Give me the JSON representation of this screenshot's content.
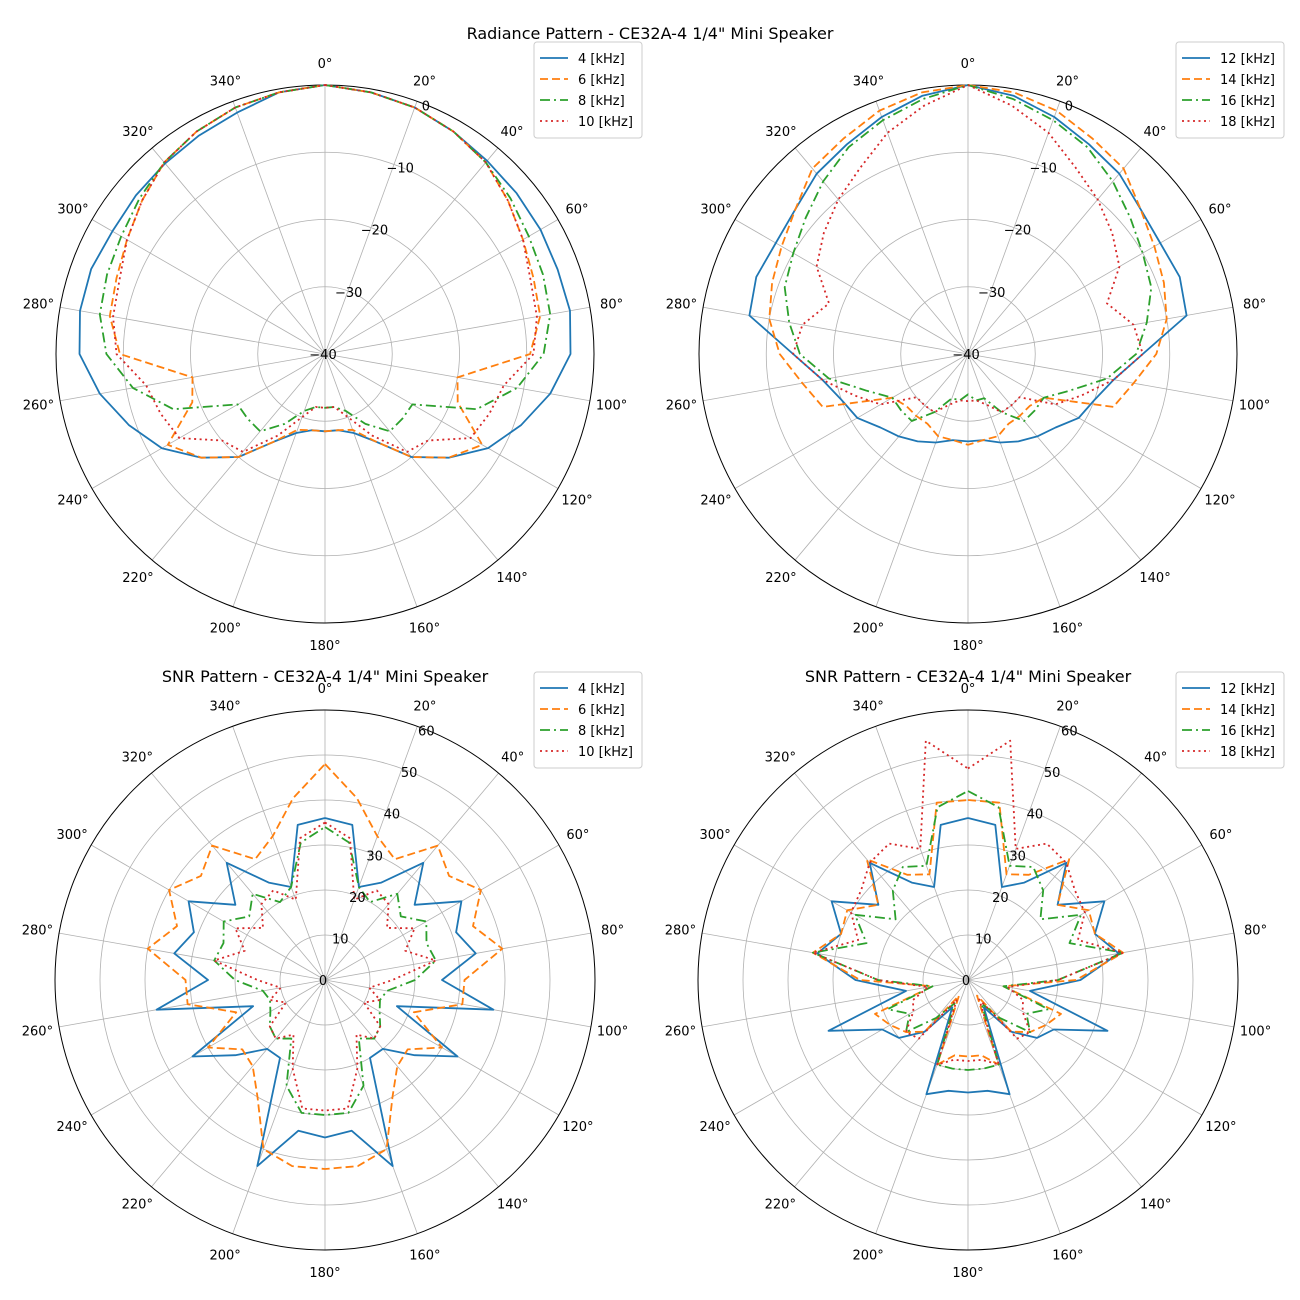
{
  "figure": {
    "titles": [
      "Radiance Pattern - CE32A-4 1/4\" Mini Speaker",
      "SNR Pattern - CE32A-4 1/4\" Mini Speaker"
    ]
  },
  "chart_data": [
    {
      "type": "line",
      "subtype": "polar",
      "panel": "top-left",
      "title": "Radiance Pattern - CE32A-4 1/4\" Mini Speaker",
      "theta_direction": "clockwise",
      "theta_zero": "top",
      "theta_tick_labels": [
        "0°",
        "20°",
        "40°",
        "60°",
        "80°",
        "100°",
        "120°",
        "140°",
        "160°",
        "180°",
        "200°",
        "220°",
        "240°",
        "260°",
        "280°",
        "300°",
        "320°",
        "340°"
      ],
      "r_range": [
        -40,
        0
      ],
      "r_ticks": [
        0,
        -10,
        -20,
        -30,
        -40
      ],
      "r_tick_labels": [
        "0",
        "−10",
        "−20",
        "−30",
        "−40"
      ],
      "grid": true,
      "legend_position": "top-right",
      "angles": [
        0,
        10,
        20,
        30,
        40,
        50,
        60,
        70,
        80,
        90,
        100,
        110,
        120,
        130,
        140,
        150,
        160,
        170,
        180,
        190,
        200,
        210,
        220,
        230,
        240,
        250,
        260,
        270,
        280,
        290,
        300,
        310,
        320,
        330,
        340,
        350
      ],
      "series": [
        {
          "name": "4 [kHz]",
          "style": "solid",
          "color": "#1f77b4",
          "values": [
            0,
            -0.5,
            -1,
            -1.8,
            -2.5,
            -2.8,
            -3,
            -3.2,
            -3,
            -3.5,
            -6,
            -9,
            -12,
            -16,
            -20,
            -25,
            -27.5,
            -28.5,
            -28.5,
            -28.5,
            -27.5,
            -25,
            -20,
            -16,
            -12,
            -9,
            -6,
            -3.5,
            -3,
            -3,
            -3.5,
            -3.3,
            -3,
            -2.5,
            -1.8,
            -0.5
          ]
        },
        {
          "name": "6 [kHz]",
          "style": "solid",
          "color": "#ff7f0e",
          "values": [
            0,
            -0.5,
            -1,
            -1.8,
            -2.8,
            -4.5,
            -6,
            -7,
            -7.5,
            -9.5,
            -20,
            -19,
            -13,
            -16,
            -20,
            -25,
            -28,
            -28.5,
            -28.5,
            -28.5,
            -28,
            -25,
            -20,
            -16,
            -13,
            -19,
            -20,
            -9.5,
            -7.5,
            -7,
            -6,
            -4.5,
            -2.8,
            -1.8,
            -1,
            -0.5
          ]
        },
        {
          "name": "8 [kHz]",
          "style": "solid",
          "color": "#2ca02c",
          "values": [
            0,
            -0.5,
            -1,
            -1.8,
            -2.8,
            -4,
            -5,
            -5.5,
            -6,
            -7.5,
            -11,
            -16,
            -25,
            -25,
            -25,
            -28,
            -31,
            -32,
            -32,
            -32,
            -31,
            -28,
            -25,
            -25,
            -25,
            -16,
            -11,
            -7.5,
            -6,
            -5.5,
            -5,
            -4,
            -2.8,
            -1.8,
            -1,
            -0.5
          ]
        },
        {
          "name": "10 [kHz]",
          "style": "solid",
          "color": "#d62728",
          "values": [
            0,
            -0.5,
            -1,
            -1.8,
            -2.8,
            -4.5,
            -6,
            -7.5,
            -8,
            -9,
            -13,
            -14,
            -15,
            -20,
            -21,
            -26,
            -30,
            -32,
            -32,
            -32,
            -30,
            -26,
            -21,
            -20,
            -15,
            -14,
            -13,
            -9,
            -8,
            -7.5,
            -6,
            -4.5,
            -2.8,
            -1.8,
            -1,
            -0.5
          ]
        }
      ]
    },
    {
      "type": "line",
      "subtype": "polar",
      "panel": "top-right",
      "title": "",
      "theta_direction": "clockwise",
      "theta_zero": "top",
      "theta_tick_labels": [
        "0°",
        "20°",
        "40°",
        "60°",
        "80°",
        "100°",
        "120°",
        "140°",
        "160°",
        "180°",
        "200°",
        "220°",
        "240°",
        "260°",
        "280°",
        "300°",
        "320°",
        "340°"
      ],
      "r_range": [
        -40,
        0
      ],
      "r_ticks": [
        0,
        -10,
        -20,
        -30,
        -40
      ],
      "r_tick_labels": [
        "0",
        "−10",
        "−20",
        "−30",
        "−40"
      ],
      "grid": true,
      "legend_position": "top-right",
      "angles": [
        0,
        10,
        20,
        30,
        40,
        50,
        60,
        70,
        80,
        90,
        100,
        110,
        120,
        130,
        140,
        150,
        160,
        170,
        180,
        190,
        200,
        210,
        220,
        230,
        240,
        250,
        260,
        270,
        280,
        290,
        300,
        310,
        320,
        330,
        340,
        350
      ],
      "series": [
        {
          "name": "12 [kHz]",
          "style": "solid",
          "color": "#1f77b4",
          "values": [
            0,
            -1,
            -2.5,
            -4,
            -5,
            -6.5,
            -7,
            -6.5,
            -7,
            -14,
            -18,
            -20,
            -21,
            -23,
            -24,
            -25,
            -26,
            -27,
            -27,
            -27,
            -26,
            -25,
            -24,
            -23,
            -21,
            -20,
            -18,
            -14,
            -7,
            -6.5,
            -7,
            -6.5,
            -5,
            -4,
            -2.5,
            -1
          ]
        },
        {
          "name": "14 [kHz]",
          "style": "solid",
          "color": "#ff7f0e",
          "values": [
            0,
            -0.5,
            -1.5,
            -3,
            -4,
            -6.5,
            -8,
            -9,
            -10,
            -12,
            -15,
            -17,
            -27,
            -28,
            -28,
            -28,
            -27,
            -27,
            -26.5,
            -27,
            -27,
            -28,
            -28,
            -28,
            -27,
            -17,
            -15,
            -12,
            -10,
            -9,
            -8,
            -6.5,
            -4,
            -3,
            -1.5,
            -0.5
          ]
        },
        {
          "name": "16 [kHz]",
          "style": "solid",
          "color": "#2ca02c",
          "values": [
            0,
            -1.5,
            -3,
            -4.5,
            -6.5,
            -8.5,
            -10,
            -11,
            -13,
            -15,
            -19,
            -24,
            -27,
            -27,
            -27,
            -30,
            -33,
            -33,
            -34,
            -33,
            -33,
            -30,
            -27,
            -27,
            -27,
            -24,
            -19,
            -15,
            -13,
            -11,
            -10,
            -8.5,
            -6.5,
            -4.5,
            -3,
            -1.5
          ]
        },
        {
          "name": "18 [kHz]",
          "style": "solid",
          "color": "#d62728",
          "values": [
            0,
            -2.5,
            -5,
            -8,
            -10,
            -12,
            -14,
            -18,
            -15,
            -14,
            -18,
            -22,
            -25,
            -30,
            -30,
            -30,
            -32,
            -33,
            -33,
            -33,
            -32,
            -30,
            -30,
            -30,
            -25,
            -22,
            -18,
            -14,
            -15,
            -18,
            -14,
            -12,
            -10,
            -8,
            -5,
            -2.5
          ]
        }
      ]
    },
    {
      "type": "line",
      "subtype": "polar",
      "panel": "bottom-left",
      "title": "SNR Pattern - CE32A-4 1/4\" Mini Speaker",
      "theta_direction": "clockwise",
      "theta_zero": "top",
      "theta_tick_labels": [
        "0°",
        "20°",
        "40°",
        "60°",
        "80°",
        "100°",
        "120°",
        "140°",
        "160°",
        "180°",
        "200°",
        "220°",
        "240°",
        "260°",
        "280°",
        "300°",
        "320°",
        "340°"
      ],
      "r_range": [
        0,
        60
      ],
      "r_ticks": [
        0,
        10,
        20,
        30,
        40,
        50,
        60
      ],
      "r_tick_labels": [
        "0",
        "10",
        "20",
        "30",
        "40",
        "50",
        "60"
      ],
      "grid": true,
      "legend_position": "top-right",
      "angles": [
        0,
        10,
        20,
        30,
        40,
        50,
        60,
        70,
        80,
        90,
        100,
        110,
        120,
        130,
        140,
        150,
        160,
        170,
        180,
        190,
        200,
        210,
        220,
        230,
        240,
        250,
        260,
        270,
        280,
        290,
        300,
        310,
        320,
        330,
        340,
        350
      ],
      "series": [
        {
          "name": "4 [kHz]",
          "style": "solid",
          "color": "#1f77b4",
          "values": [
            36,
            35,
            22,
            25,
            34,
            26,
            35,
            31,
            34,
            26,
            38,
            17,
            34,
            26,
            20,
            20,
            44,
            34,
            35,
            34,
            44,
            20,
            20,
            26,
            34,
            17,
            38,
            26,
            34,
            31,
            35,
            26,
            34,
            25,
            22,
            35
          ]
        },
        {
          "name": "6 [kHz]",
          "style": "solid",
          "color": "#ff7f0e",
          "values": [
            48,
            41,
            34,
            31,
            39,
            36,
            40,
            35,
            40,
            31,
            31,
            21,
            30,
            24,
            25,
            30,
            40,
            42,
            42,
            42,
            40,
            30,
            25,
            24,
            30,
            21,
            31,
            31,
            40,
            35,
            40,
            36,
            39,
            31,
            34,
            41
          ]
        },
        {
          "name": "8 [kHz]",
          "style": "solid",
          "color": "#2ca02c",
          "values": [
            34,
            31,
            22,
            20,
            25,
            22,
            26,
            24,
            25,
            20,
            14,
            13,
            14,
            16,
            17,
            15,
            25,
            30,
            30,
            30,
            25,
            15,
            17,
            16,
            14,
            13,
            14,
            20,
            25,
            24,
            26,
            22,
            25,
            20,
            22,
            31
          ]
        },
        {
          "name": "10 [kHz]",
          "style": "solid",
          "color": "#d62728",
          "values": [
            35,
            32,
            19,
            23,
            22,
            18,
            23,
            19,
            25,
            15,
            10,
            13,
            10,
            16,
            17,
            14,
            21,
            29,
            29,
            29,
            21,
            14,
            17,
            16,
            10,
            13,
            10,
            15,
            25,
            19,
            23,
            18,
            22,
            23,
            19,
            32
          ]
        }
      ]
    },
    {
      "type": "line",
      "subtype": "polar",
      "panel": "bottom-right",
      "title": "SNR Pattern - CE32A-4 1/4\" Mini Speaker",
      "theta_direction": "clockwise",
      "theta_zero": "top",
      "theta_tick_labels": [
        "0°",
        "20°",
        "40°",
        "60°",
        "80°",
        "100°",
        "120°",
        "140°",
        "160°",
        "180°",
        "200°",
        "220°",
        "240°",
        "260°",
        "280°",
        "300°",
        "320°",
        "340°"
      ],
      "r_range": [
        0,
        60
      ],
      "r_ticks": [
        0,
        10,
        20,
        30,
        40,
        50,
        60
      ],
      "r_tick_labels": [
        "0",
        "10",
        "20",
        "30",
        "40",
        "50",
        "60"
      ],
      "grid": true,
      "legend_position": "top-right",
      "angles": [
        0,
        10,
        20,
        30,
        40,
        50,
        60,
        70,
        80,
        90,
        100,
        110,
        120,
        130,
        140,
        150,
        160,
        170,
        180,
        190,
        200,
        210,
        220,
        230,
        240,
        250,
        260,
        270,
        280,
        290,
        300,
        310,
        320,
        330,
        340,
        350
      ],
      "series": [
        {
          "name": "12 [kHz]",
          "style": "solid",
          "color": "#1f77b4",
          "values": [
            36,
            35,
            22,
            25,
            34,
            26,
            35,
            30,
            34,
            25,
            14,
            33,
            22,
            20,
            15,
            7,
            27,
            25,
            25,
            25,
            27,
            7,
            15,
            20,
            22,
            33,
            14,
            25,
            34,
            30,
            35,
            26,
            34,
            25,
            22,
            35
          ]
        },
        {
          "name": "14 [kHz]",
          "style": "solid",
          "color": "#ff7f0e",
          "values": [
            40,
            40,
            25,
            27,
            35,
            26,
            31,
            30,
            35,
            24,
            8,
            22,
            20,
            18,
            15,
            4,
            20,
            17,
            17,
            17,
            20,
            4,
            15,
            18,
            20,
            22,
            8,
            24,
            35,
            30,
            31,
            26,
            35,
            27,
            25,
            40
          ]
        },
        {
          "name": "16 [kHz]",
          "style": "solid",
          "color": "#2ca02c",
          "values": [
            42,
            39,
            27,
            29,
            26,
            21,
            29,
            24,
            35,
            20,
            8,
            19,
            15,
            18,
            11,
            6,
            20,
            20,
            20,
            20,
            20,
            6,
            11,
            18,
            15,
            19,
            8,
            20,
            35,
            24,
            29,
            21,
            26,
            29,
            27,
            39
          ]
        },
        {
          "name": "18 [kHz]",
          "style": "solid",
          "color": "#d62728",
          "values": [
            47,
            54,
            31,
            35,
            34,
            31,
            30,
            26,
            35,
            20,
            9,
            13,
            14,
            18,
            17,
            5,
            20,
            18,
            18,
            18,
            20,
            5,
            17,
            18,
            14,
            13,
            9,
            20,
            35,
            26,
            30,
            31,
            34,
            35,
            31,
            54
          ]
        }
      ]
    }
  ]
}
